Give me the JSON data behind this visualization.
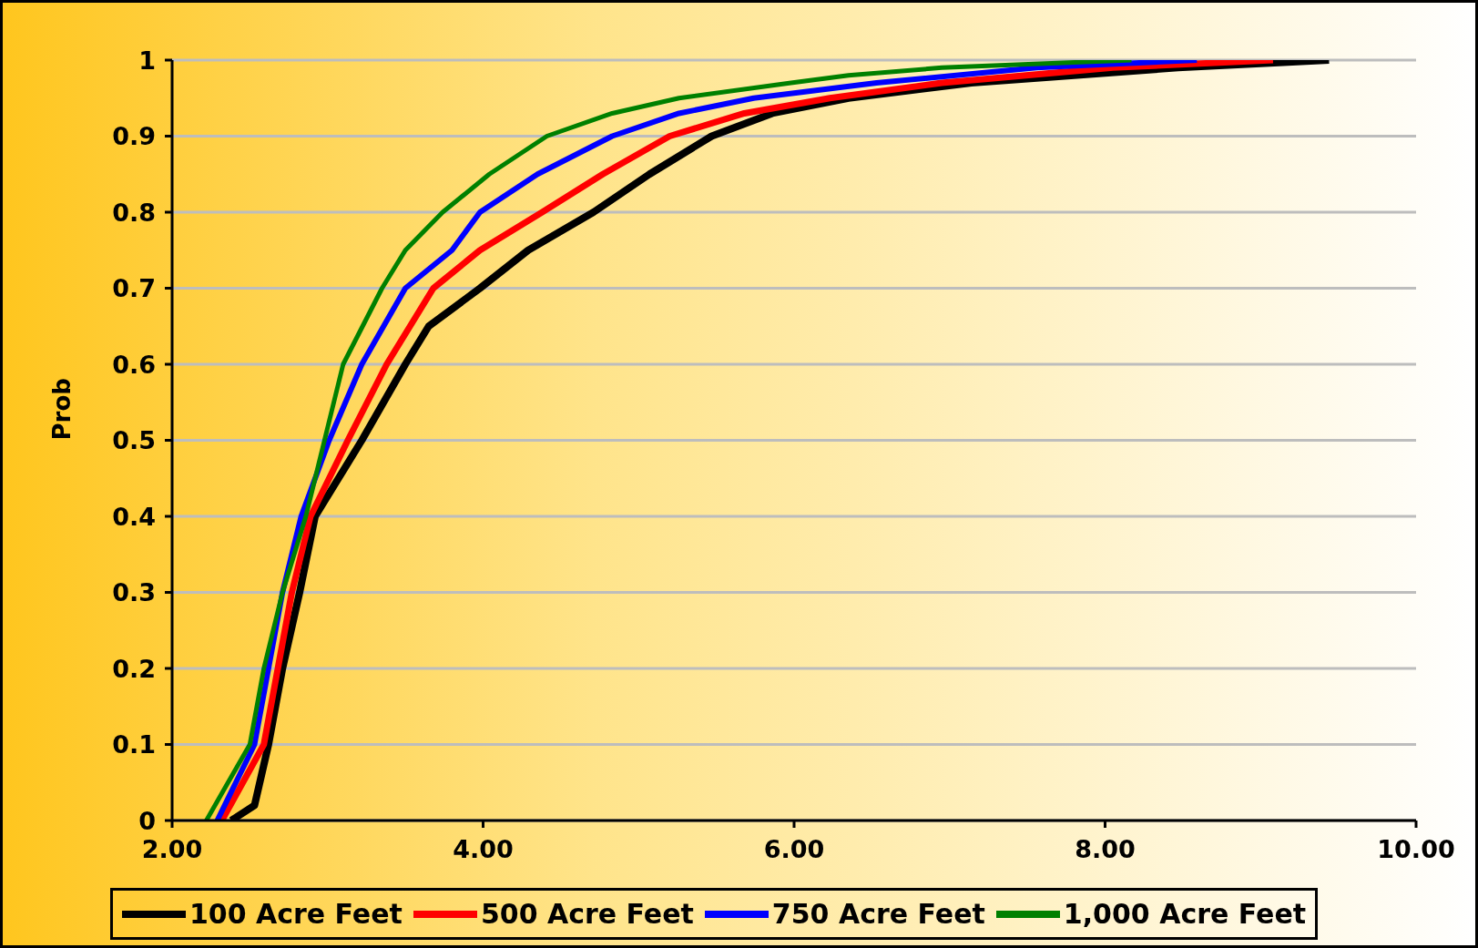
{
  "chart_data": {
    "type": "line",
    "ylabel": "Prob",
    "marker": "none",
    "line_style": "solid",
    "grid": "y",
    "legend": "bottom",
    "xlim": [
      2,
      10
    ],
    "xticks": [
      {
        "value": 2,
        "label": "2.00"
      },
      {
        "value": 4,
        "label": "4.00"
      },
      {
        "value": 6,
        "label": "6.00"
      },
      {
        "value": 8,
        "label": "8.00"
      },
      {
        "value": 10,
        "label": "10.00"
      }
    ],
    "ylim": [
      0,
      1
    ],
    "yticks": [
      0,
      0.1,
      0.2,
      0.3,
      0.4,
      0.5,
      0.6,
      0.7,
      0.8,
      0.9,
      1
    ],
    "series": [
      {
        "name": "100 Acre Feet",
        "color": "#000000",
        "x": [
          2.38,
          2.53,
          2.62,
          2.71,
          2.82,
          2.92,
          3.22,
          3.5,
          3.65,
          3.98,
          4.29,
          4.71,
          5.07,
          5.47,
          5.86,
          6.35,
          7.14,
          7.8,
          8.47,
          9.44
        ],
        "values": [
          0,
          0.02,
          0.1,
          0.2,
          0.3,
          0.4,
          0.5,
          0.6,
          0.65,
          0.7,
          0.75,
          0.8,
          0.85,
          0.9,
          0.93,
          0.95,
          0.97,
          0.98,
          0.99,
          1
        ]
      },
      {
        "name": "500 Acre Feet",
        "color": "#ff0000",
        "x": [
          2.32,
          2.59,
          2.68,
          2.77,
          2.89,
          3.13,
          3.38,
          3.68,
          3.98,
          4.38,
          4.77,
          5.2,
          5.68,
          6.23,
          6.95,
          8.05,
          9.08
        ],
        "values": [
          0,
          0.1,
          0.2,
          0.3,
          0.4,
          0.5,
          0.6,
          0.7,
          0.75,
          0.8,
          0.85,
          0.9,
          0.93,
          0.95,
          0.97,
          0.99,
          1
        ]
      },
      {
        "name": "750 Acre Feet",
        "color": "#0000ff",
        "x": [
          2.29,
          2.53,
          2.62,
          2.71,
          2.83,
          3.01,
          3.22,
          3.5,
          3.8,
          3.98,
          4.35,
          4.83,
          5.26,
          5.74,
          6.53,
          7.56,
          8.59
        ],
        "values": [
          0,
          0.1,
          0.2,
          0.3,
          0.4,
          0.5,
          0.6,
          0.7,
          0.75,
          0.8,
          0.85,
          0.9,
          0.93,
          0.95,
          0.97,
          0.99,
          1
        ]
      },
      {
        "name": "1,000 Acre Feet",
        "color": "#008000",
        "x": [
          2.22,
          2.5,
          2.59,
          2.71,
          2.86,
          2.98,
          3.1,
          3.35,
          3.5,
          3.74,
          4.04,
          4.41,
          4.83,
          5.26,
          5.98,
          6.35,
          6.95,
          8.17
        ],
        "values": [
          0,
          0.1,
          0.2,
          0.3,
          0.4,
          0.5,
          0.6,
          0.7,
          0.75,
          0.8,
          0.85,
          0.9,
          0.93,
          0.95,
          0.97,
          0.98,
          0.99,
          1
        ]
      }
    ]
  }
}
